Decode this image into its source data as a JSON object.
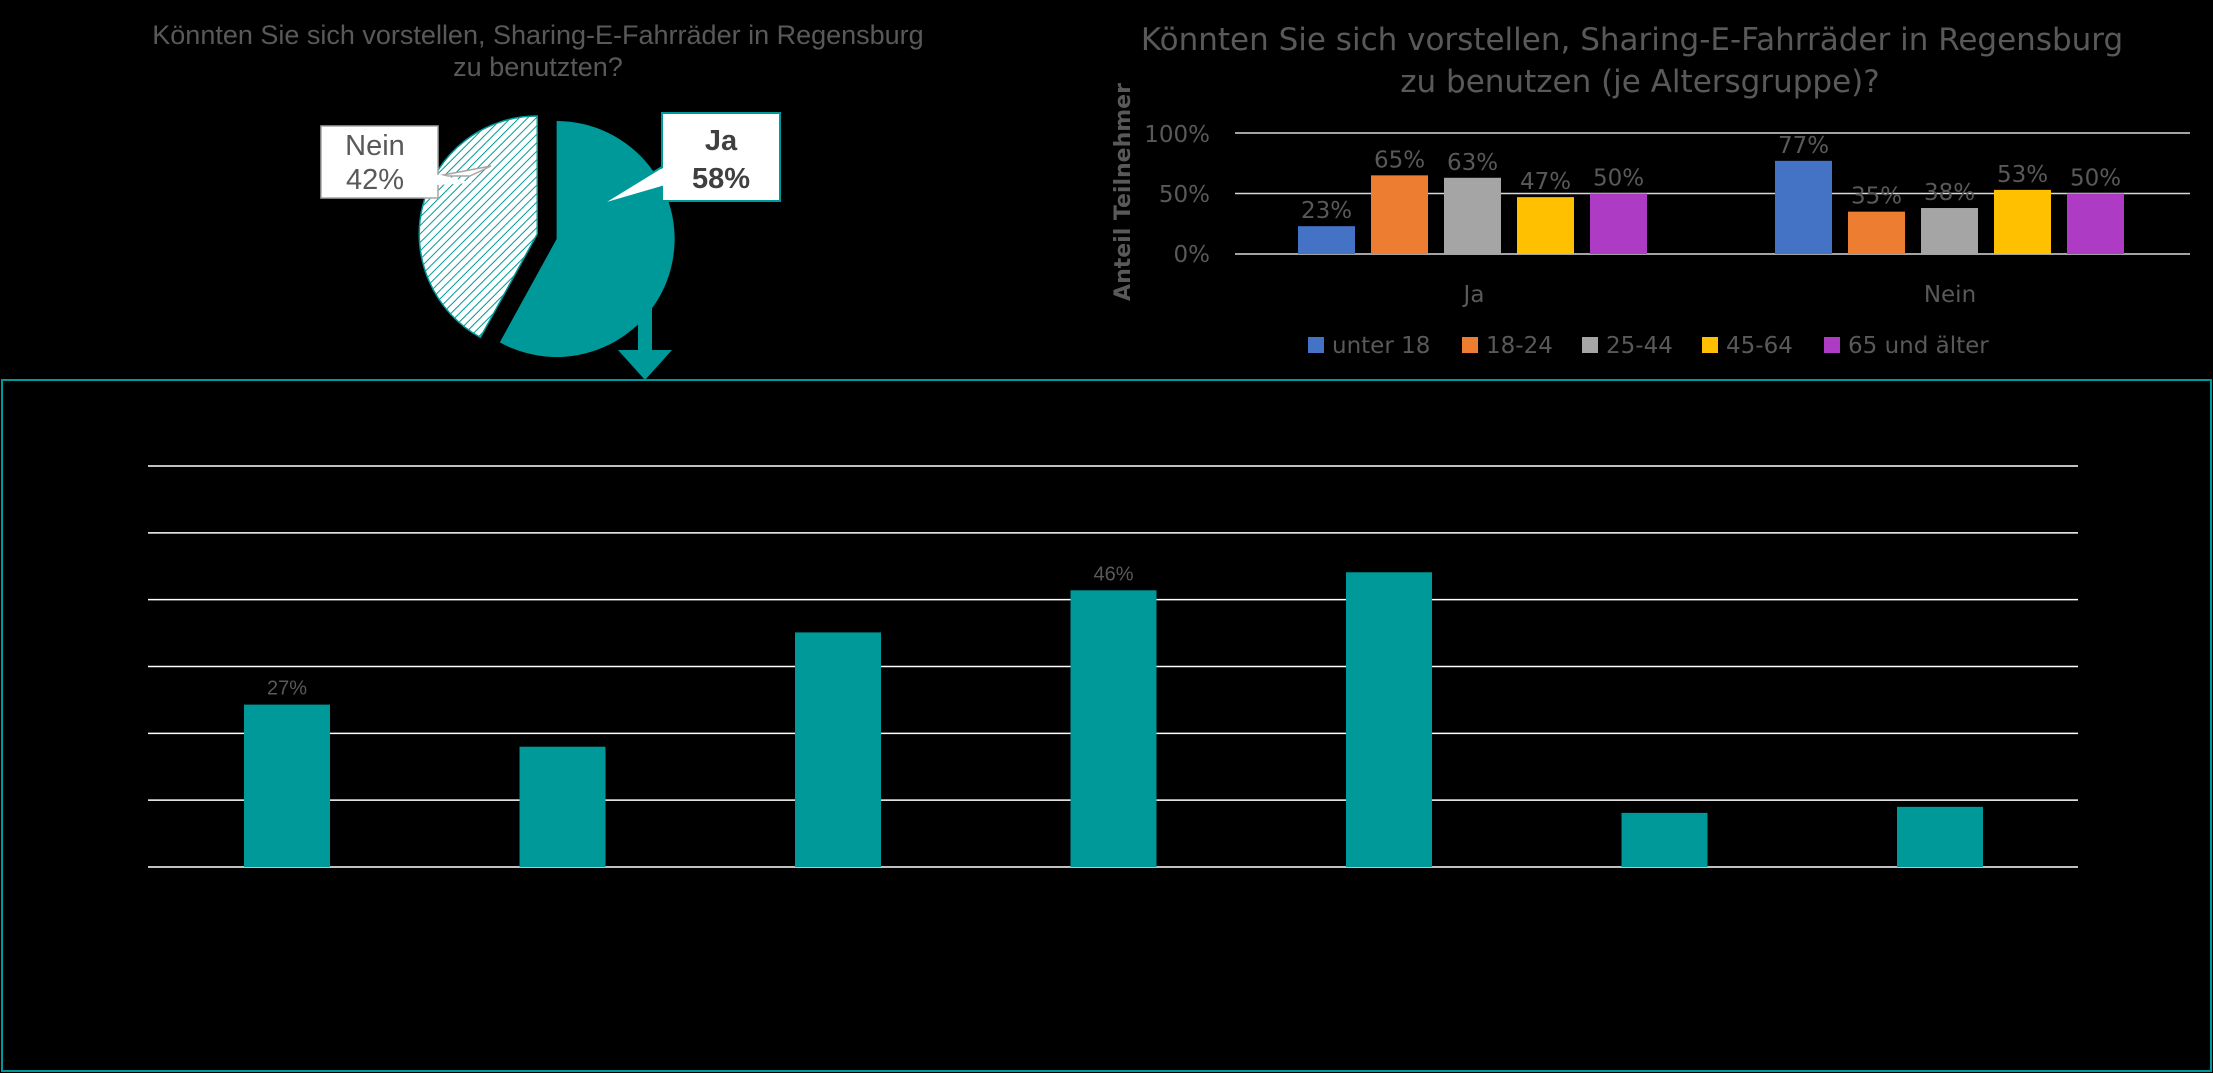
{
  "colors": {
    "teal": "#009999",
    "background": "#000000",
    "series": [
      "#4472C4",
      "#ED7D31",
      "#A5A5A5",
      "#FFC000",
      "#AE3BC4"
    ]
  },
  "chart_data": [
    {
      "type": "pie",
      "title": "Könnten Sie sich vorstellen, Sharing-E-Fahrräder in Regensburg zu benutzten?",
      "title_lines": [
        "Könnten Sie sich vorstellen, Sharing-E-Fahrräder in Regensburg",
        "zu benutzten?"
      ],
      "slices": [
        {
          "label": "Ja",
          "value": 58,
          "display": "58%"
        },
        {
          "label": "Nein",
          "value": 42,
          "display": "42%"
        }
      ]
    },
    {
      "type": "bar",
      "title": "Könnten Sie sich vorstellen, Sharing-E-Fahrräder in Regensburg zu benutzen (je Altersgruppe)?",
      "title_lines": [
        "Könnten Sie sich vorstellen, Sharing-E-Fahrräder in Regensburg",
        "zu benutzen (je Altersgruppe)?"
      ],
      "ylabel": "Anteil Teilnehmer",
      "yticks": [
        "100%",
        "50%",
        "0%"
      ],
      "ylim": [
        0,
        100
      ],
      "categories": [
        "Ja",
        "Nein"
      ],
      "series": [
        {
          "name": "unter 18",
          "values": [
            23,
            77
          ],
          "labels": [
            "23%",
            "77%"
          ]
        },
        {
          "name": "18-24",
          "values": [
            65,
            35
          ],
          "labels": [
            "65%",
            "35%"
          ]
        },
        {
          "name": "25-44",
          "values": [
            63,
            38
          ],
          "labels": [
            "63%",
            "38%"
          ]
        },
        {
          "name": "45-64",
          "values": [
            47,
            53
          ],
          "labels": [
            "47%",
            "53%"
          ]
        },
        {
          "name": "65 und älter",
          "values": [
            50,
            50
          ],
          "labels": [
            "50%",
            "50%"
          ]
        }
      ],
      "legend": "bottom"
    },
    {
      "type": "bar",
      "gridlines": 7,
      "bar_values": [
        27,
        20,
        39,
        46,
        49,
        9,
        10
      ],
      "value_labels": [
        {
          "bar": 0,
          "text": "27%"
        },
        {
          "bar": 3,
          "text": "46%"
        }
      ]
    }
  ]
}
